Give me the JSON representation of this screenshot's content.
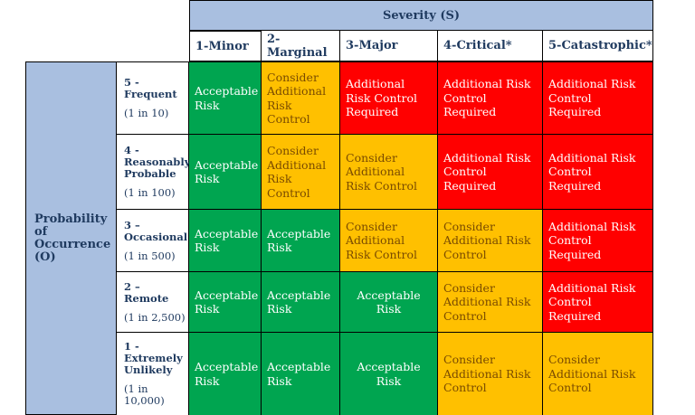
{
  "severity_header": "Severity (S)",
  "columns": [
    "1-Minor",
    "2-Marginal",
    "3-Major",
    "4-Critical*",
    "5-Catastrophic*"
  ],
  "probability_header": "Probability of Occurrence (O)",
  "rows": [
    {
      "level": "5 - Frequent",
      "freq": "(1 in 10)",
      "cells": [
        "Acceptable Risk",
        "Consider Additional Risk Control",
        "Additional Risk Control Required",
        "Additional Risk Control Required",
        "Additional Risk Control Required"
      ],
      "colors": [
        "green",
        "yellow",
        "red",
        "red",
        "red"
      ]
    },
    {
      "level": "4 - Reasonably Probable",
      "freq": "(1 in 100)",
      "cells": [
        "Acceptable Risk",
        "Consider Additional Risk Control",
        "Consider Additional Risk Control",
        "Additional Risk Control Required",
        "Additional Risk Control Required"
      ],
      "colors": [
        "green",
        "yellow",
        "yellow",
        "red",
        "red"
      ]
    },
    {
      "level": "3 – Occasional",
      "freq": "(1 in 500)",
      "cells": [
        "Acceptable Risk",
        "Acceptable Risk",
        "Consider Additional Risk Control",
        "Consider Additional Risk Control",
        "Additional Risk Control Required"
      ],
      "colors": [
        "green",
        "green",
        "yellow",
        "yellow",
        "red"
      ]
    },
    {
      "level": "2 – Remote",
      "freq": "(1 in 2,500)",
      "cells": [
        "Acceptable Risk",
        "Acceptable Risk",
        "Acceptable Risk",
        "Consider Additional Risk Control",
        "Additional Risk Control Required"
      ],
      "colors": [
        "green",
        "green",
        "green",
        "yellow",
        "red"
      ]
    },
    {
      "level": "1 - Extremely Unlikely",
      "freq": "(1 in 10,000)",
      "cells": [
        "Acceptable Risk",
        "Acceptable Risk",
        "Acceptable Risk",
        "Consider Additional Risk Control",
        "Consider Additional Risk Control"
      ],
      "colors": [
        "green",
        "green",
        "green",
        "yellow",
        "yellow"
      ]
    }
  ],
  "palette": {
    "green": "#00a550",
    "yellow": "#ffc000",
    "red": "#ff0000",
    "header": "#a9bfe0"
  }
}
